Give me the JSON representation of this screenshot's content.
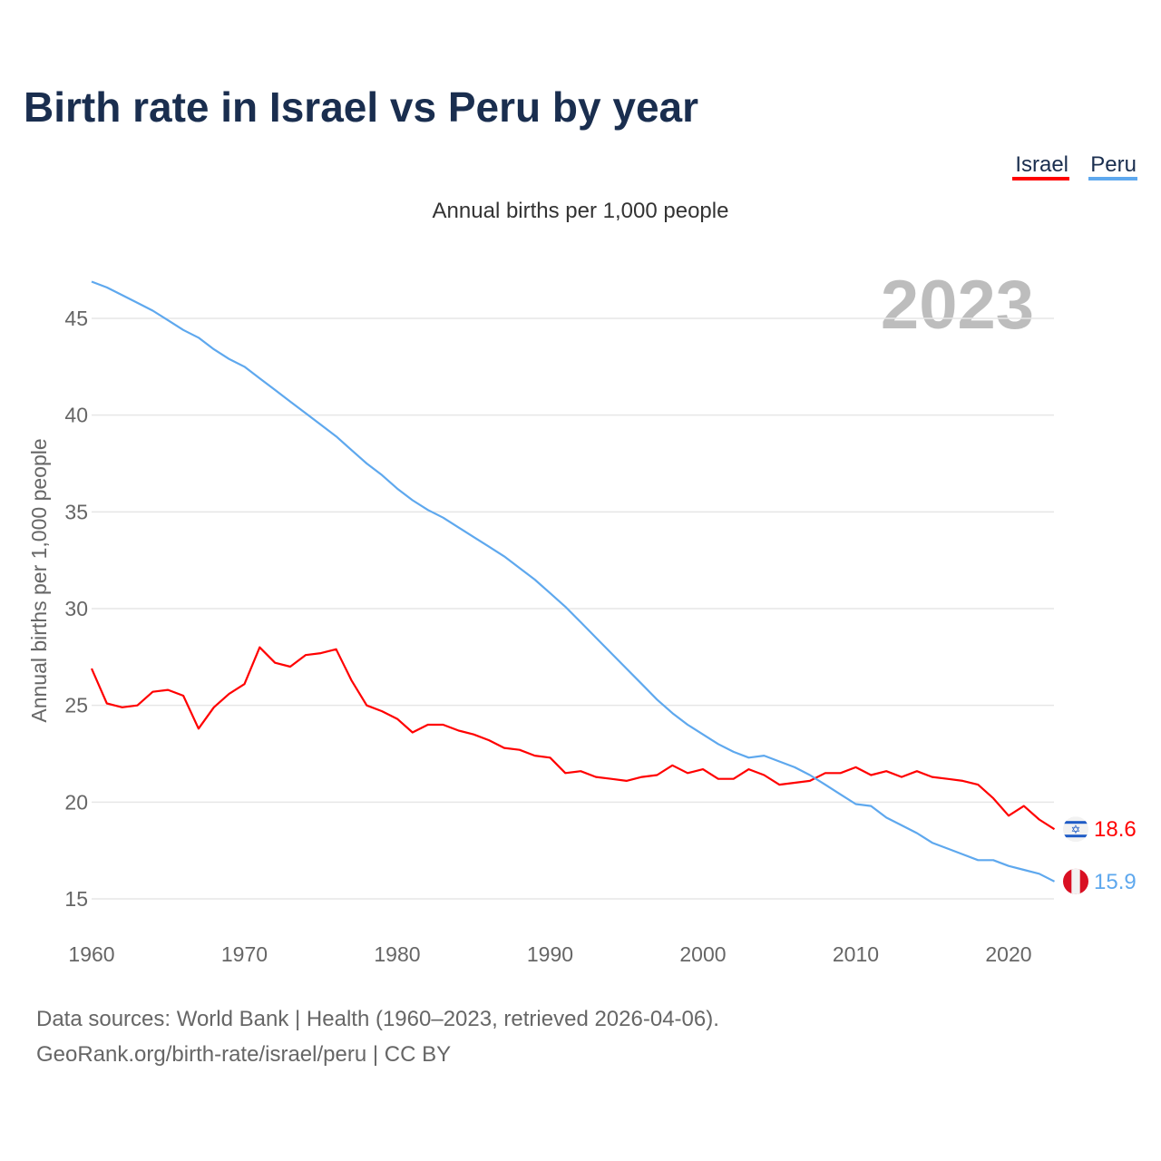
{
  "chart_data": {
    "type": "line",
    "title": "Birth rate in Israel vs Peru by year",
    "subtitle": "Annual births per 1,000 people",
    "ylabel": "Annual births per 1,000 people",
    "xlabel": "",
    "current_year_label": "2023",
    "xlim": [
      1960,
      2023
    ],
    "ylim": [
      13.5,
      47.5
    ],
    "x_ticks": [
      1960,
      1970,
      1980,
      1990,
      2000,
      2010,
      2020
    ],
    "y_ticks": [
      15,
      20,
      25,
      30,
      35,
      40,
      45
    ],
    "grid": true,
    "legend_position": "top-right",
    "x": [
      1960,
      1961,
      1962,
      1963,
      1964,
      1965,
      1966,
      1967,
      1968,
      1969,
      1970,
      1971,
      1972,
      1973,
      1974,
      1975,
      1976,
      1977,
      1978,
      1979,
      1980,
      1981,
      1982,
      1983,
      1984,
      1985,
      1986,
      1987,
      1988,
      1989,
      1990,
      1991,
      1992,
      1993,
      1994,
      1995,
      1996,
      1997,
      1998,
      1999,
      2000,
      2001,
      2002,
      2003,
      2004,
      2005,
      2006,
      2007,
      2008,
      2009,
      2010,
      2011,
      2012,
      2013,
      2014,
      2015,
      2016,
      2017,
      2018,
      2019,
      2020,
      2021,
      2022,
      2023
    ],
    "series": [
      {
        "name": "Israel",
        "color": "#ff0000",
        "end_label": "18.6",
        "values": [
          26.9,
          25.1,
          24.9,
          25.0,
          25.7,
          25.8,
          25.5,
          23.8,
          24.9,
          25.6,
          26.1,
          28.0,
          27.2,
          27.0,
          27.6,
          27.7,
          27.9,
          26.3,
          25.0,
          24.7,
          24.3,
          23.6,
          24.0,
          24.0,
          23.7,
          23.5,
          23.2,
          22.8,
          22.7,
          22.4,
          22.3,
          21.5,
          21.6,
          21.3,
          21.2,
          21.1,
          21.3,
          21.4,
          21.9,
          21.5,
          21.7,
          21.2,
          21.2,
          21.7,
          21.4,
          20.9,
          21.0,
          21.1,
          21.5,
          21.5,
          21.8,
          21.4,
          21.6,
          21.3,
          21.6,
          21.3,
          21.2,
          21.1,
          20.9,
          20.2,
          19.3,
          19.8,
          19.1,
          18.6
        ]
      },
      {
        "name": "Peru",
        "color": "#5ea8ee",
        "end_label": "15.9",
        "values": [
          46.9,
          46.6,
          46.2,
          45.8,
          45.4,
          44.9,
          44.4,
          44.0,
          43.4,
          42.9,
          42.5,
          41.9,
          41.3,
          40.7,
          40.1,
          39.5,
          38.9,
          38.2,
          37.5,
          36.9,
          36.2,
          35.6,
          35.1,
          34.7,
          34.2,
          33.7,
          33.2,
          32.7,
          32.1,
          31.5,
          30.8,
          30.1,
          29.3,
          28.5,
          27.7,
          26.9,
          26.1,
          25.3,
          24.6,
          24.0,
          23.5,
          23.0,
          22.6,
          22.3,
          22.4,
          22.1,
          21.8,
          21.4,
          20.9,
          20.4,
          19.9,
          19.8,
          19.2,
          18.8,
          18.4,
          17.9,
          17.6,
          17.3,
          17.0,
          17.0,
          16.7,
          16.5,
          16.3,
          15.9
        ]
      }
    ]
  },
  "footer": {
    "source_line": "Data sources: World Bank | Health (1960–2023, retrieved 2026-04-06).",
    "credit_line": "GeoRank.org/birth-rate/israel/peru | CC BY"
  }
}
